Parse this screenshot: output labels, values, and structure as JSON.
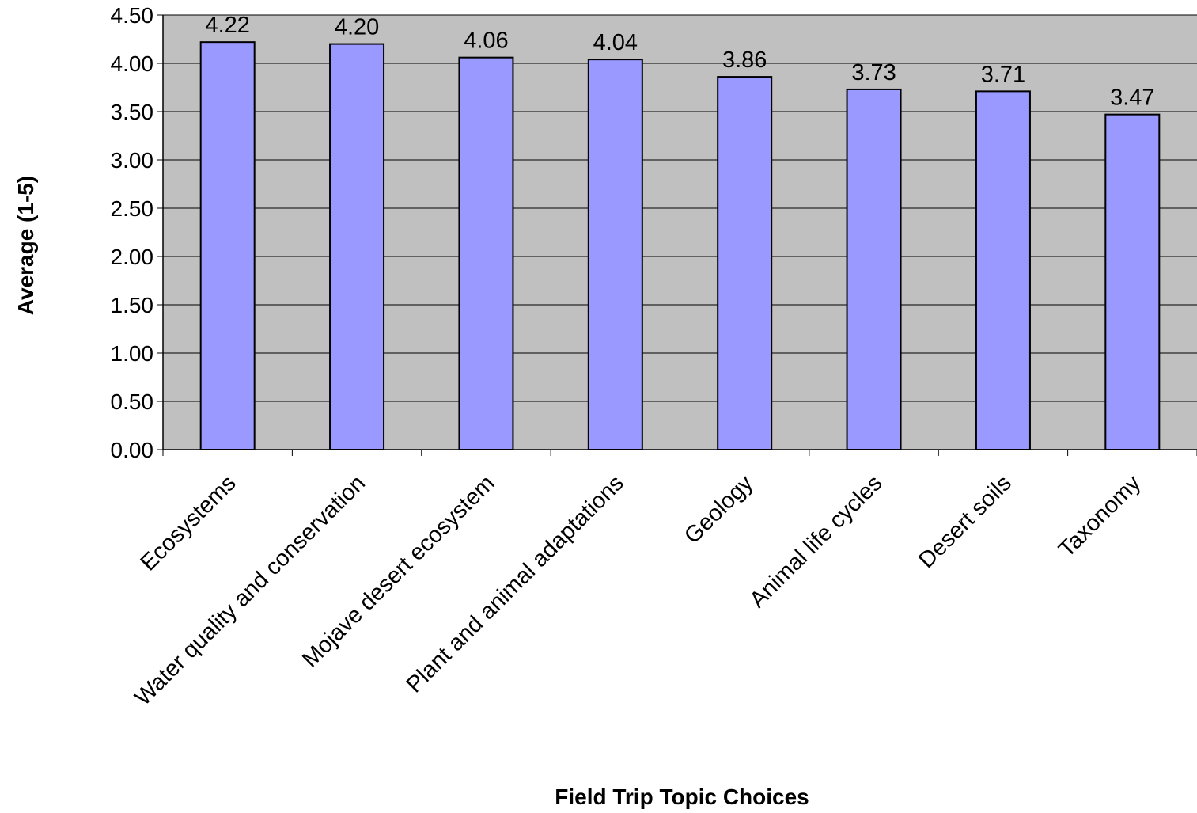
{
  "chart_data": {
    "type": "bar",
    "title": "",
    "xlabel": "Field Trip Topic Choices",
    "ylabel": "Average (1-5)",
    "categories": [
      "Ecosystems",
      "Water quality and conservation",
      "Mojave desert ecosystem",
      "Plant and animal adaptations",
      "Geology",
      "Animal life cycles",
      "Desert soils",
      "Taxonomy"
    ],
    "values": [
      4.22,
      4.2,
      4.06,
      4.04,
      3.86,
      3.73,
      3.71,
      3.47
    ],
    "value_labels": [
      "4.22",
      "4.20",
      "4.06",
      "4.04",
      "3.86",
      "3.73",
      "3.71",
      "3.47"
    ],
    "ylim": [
      0,
      4.5
    ],
    "yticks": [
      "0.00",
      "0.50",
      "1.00",
      "1.50",
      "2.00",
      "2.50",
      "3.00",
      "3.50",
      "4.00",
      "4.50"
    ],
    "grid": true,
    "legend": "none",
    "colors": {
      "plot_background": "#c0c0c0",
      "bar_fill": "#9999ff",
      "bar_stroke": "#000000",
      "gridline": "#000000"
    }
  }
}
